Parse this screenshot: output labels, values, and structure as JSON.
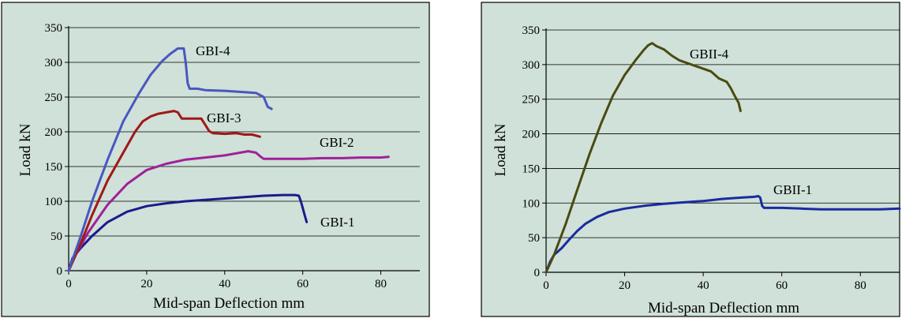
{
  "colors": {
    "panel_background": "#cfe1d8",
    "panel_border": "#000000",
    "gridline": "#000000"
  },
  "chart_data": [
    {
      "type": "line",
      "xlabel": "Mid-span Deflection    mm",
      "ylabel": "Load  kN",
      "xlim": [
        0,
        90
      ],
      "ylim": [
        0,
        350
      ],
      "xticks": [
        0,
        20,
        40,
        60,
        80
      ],
      "yticks": [
        0,
        50,
        100,
        150,
        200,
        250,
        300,
        350
      ],
      "grid": "horizontal",
      "series": [
        {
          "name": "GBI-1",
          "color": "#1a1a8c",
          "points": [
            [
              0,
              0
            ],
            [
              1,
              18
            ],
            [
              3,
              32
            ],
            [
              6,
              50
            ],
            [
              10,
              70
            ],
            [
              15,
              85
            ],
            [
              20,
              93
            ],
            [
              25,
              97
            ],
            [
              30,
              100
            ],
            [
              35,
              102
            ],
            [
              40,
              104
            ],
            [
              45,
              106
            ],
            [
              50,
              108
            ],
            [
              55,
              109
            ],
            [
              58,
              109
            ],
            [
              59,
              108
            ],
            [
              59.5,
              100
            ],
            [
              60,
              90
            ],
            [
              60.5,
              80
            ],
            [
              61,
              70
            ]
          ]
        },
        {
          "name": "GBI-2",
          "color": "#a0209a",
          "points": [
            [
              0,
              0
            ],
            [
              2,
              25
            ],
            [
              5,
              55
            ],
            [
              10,
              95
            ],
            [
              15,
              125
            ],
            [
              20,
              145
            ],
            [
              25,
              154
            ],
            [
              30,
              160
            ],
            [
              35,
              163
            ],
            [
              40,
              166
            ],
            [
              44,
              170
            ],
            [
              46,
              172
            ],
            [
              48,
              170
            ],
            [
              49,
              165
            ],
            [
              50,
              161
            ],
            [
              55,
              161
            ],
            [
              60,
              161
            ],
            [
              65,
              162
            ],
            [
              70,
              162
            ],
            [
              75,
              163
            ],
            [
              80,
              163
            ],
            [
              82,
              164
            ]
          ]
        },
        {
          "name": "GBI-3",
          "color": "#a01818",
          "points": [
            [
              0,
              0
            ],
            [
              3,
              38
            ],
            [
              6,
              80
            ],
            [
              10,
              130
            ],
            [
              14,
              170
            ],
            [
              17,
              200
            ],
            [
              19,
              215
            ],
            [
              21,
              222
            ],
            [
              23,
              226
            ],
            [
              25,
              228
            ],
            [
              27,
              230
            ],
            [
              28,
              228
            ],
            [
              29,
              219
            ],
            [
              30,
              219
            ],
            [
              32,
              219
            ],
            [
              34,
              219
            ],
            [
              35,
              210
            ],
            [
              36,
              201
            ],
            [
              37,
              198
            ],
            [
              40,
              197
            ],
            [
              43,
              198
            ],
            [
              45,
              196
            ],
            [
              47,
              196
            ],
            [
              49,
              193
            ]
          ]
        },
        {
          "name": "GBI-4",
          "color": "#4a56c0",
          "points": [
            [
              0,
              0
            ],
            [
              3,
              48
            ],
            [
              6,
              100
            ],
            [
              10,
              160
            ],
            [
              14,
              215
            ],
            [
              18,
              255
            ],
            [
              21,
              282
            ],
            [
              24,
              302
            ],
            [
              26,
              312
            ],
            [
              28,
              320
            ],
            [
              29.5,
              320
            ],
            [
              30,
              300
            ],
            [
              30.5,
              270
            ],
            [
              31,
              262
            ],
            [
              33,
              262
            ],
            [
              35,
              260
            ],
            [
              40,
              259
            ],
            [
              45,
              257
            ],
            [
              48,
              256
            ],
            [
              50,
              250
            ],
            [
              51,
              236
            ],
            [
              52,
              233
            ]
          ]
        }
      ]
    },
    {
      "type": "line",
      "xlabel": "Mid-span Deflection    mm",
      "ylabel": "Load  kN",
      "xlim": [
        0,
        90
      ],
      "ylim": [
        0,
        350
      ],
      "xticks": [
        0,
        20,
        40,
        60,
        80
      ],
      "yticks": [
        0,
        50,
        100,
        150,
        200,
        250,
        300,
        350
      ],
      "grid": "horizontal",
      "series": [
        {
          "name": "GBII-1",
          "color": "#1a2aa0",
          "points": [
            [
              0,
              0
            ],
            [
              1,
              15
            ],
            [
              2,
              25
            ],
            [
              4,
              35
            ],
            [
              6,
              48
            ],
            [
              8,
              60
            ],
            [
              10,
              70
            ],
            [
              13,
              80
            ],
            [
              16,
              87
            ],
            [
              20,
              92
            ],
            [
              25,
              96
            ],
            [
              30,
              99
            ],
            [
              35,
              101
            ],
            [
              40,
              103
            ],
            [
              45,
              106
            ],
            [
              50,
              108
            ],
            [
              53,
              109
            ],
            [
              54,
              110
            ],
            [
              54.5,
              108
            ],
            [
              55,
              96
            ],
            [
              55.5,
              93
            ],
            [
              60,
              93
            ],
            [
              65,
              92
            ],
            [
              70,
              91
            ],
            [
              75,
              91
            ],
            [
              80,
              91
            ],
            [
              85,
              91
            ],
            [
              90,
              92
            ]
          ]
        },
        {
          "name": "GBII-4",
          "color": "#4a4a12",
          "points": [
            [
              0,
              0
            ],
            [
              2,
              25
            ],
            [
              5,
              70
            ],
            [
              8,
              120
            ],
            [
              11,
              170
            ],
            [
              14,
              215
            ],
            [
              17,
              255
            ],
            [
              20,
              285
            ],
            [
              23,
              308
            ],
            [
              25,
              322
            ],
            [
              26,
              328
            ],
            [
              27,
              331
            ],
            [
              28,
              327
            ],
            [
              30,
              322
            ],
            [
              32,
              313
            ],
            [
              34,
              306
            ],
            [
              36,
              302
            ],
            [
              38,
              298
            ],
            [
              40,
              294
            ],
            [
              42,
              290
            ],
            [
              44,
              280
            ],
            [
              46,
              275
            ],
            [
              47,
              266
            ],
            [
              48,
              255
            ],
            [
              49,
              245
            ],
            [
              49.5,
              233
            ]
          ]
        }
      ]
    }
  ]
}
